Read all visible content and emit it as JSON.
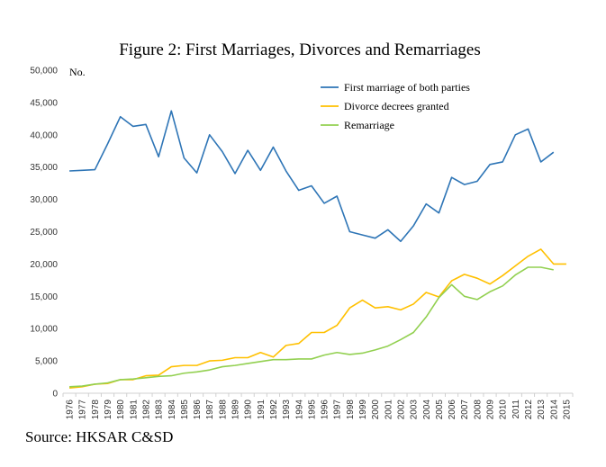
{
  "chart_data": {
    "type": "line",
    "title": "Figure 2: First Marriages, Divorces and Remarriages",
    "ylabel": "No.",
    "source": "Source: HKSAR C&SD",
    "ylim": [
      0,
      50000
    ],
    "yticks": [
      "0",
      "5,000",
      "10,000",
      "15,000",
      "20,000",
      "25,000",
      "30,000",
      "35,000",
      "40,000",
      "45,000",
      "50,000"
    ],
    "ytick_values": [
      0,
      5000,
      10000,
      15000,
      20000,
      25000,
      30000,
      35000,
      40000,
      45000,
      50000
    ],
    "x": [
      "1976",
      "1977",
      "1978",
      "1979",
      "1980",
      "1981",
      "1982",
      "1983",
      "1984",
      "1985",
      "1986",
      "1987",
      "1988",
      "1989",
      "1990",
      "1991",
      "1992",
      "1993",
      "1994",
      "1995",
      "1996",
      "1997",
      "1998",
      "1999",
      "2000",
      "2001",
      "2002",
      "2003",
      "2004",
      "2005",
      "2006",
      "2007",
      "2008",
      "2009",
      "2010",
      "2011",
      "2012",
      "2013",
      "2014",
      "2015"
    ],
    "legend_position": "top-right",
    "grid": false,
    "series": [
      {
        "name": "First marriage  of both parties",
        "color": "#2e75b6",
        "values": [
          34400,
          34500,
          34600,
          38600,
          42800,
          41300,
          41600,
          36600,
          43700,
          36400,
          34100,
          40000,
          37400,
          34000,
          37600,
          34500,
          38100,
          34400,
          31400,
          32100,
          29400,
          30500,
          25000,
          24500,
          24000,
          25300,
          23500,
          25900,
          29300,
          27900,
          33400,
          32300,
          32800,
          35400,
          35800,
          40000,
          40900,
          35800,
          37300,
          null
        ]
      },
      {
        "name": "Divorce decrees granted",
        "color": "#ffc000",
        "values": [
          800,
          1000,
          1400,
          1500,
          2100,
          2100,
          2700,
          2800,
          4100,
          4300,
          4300,
          5000,
          5100,
          5500,
          5500,
          6300,
          5600,
          7400,
          7700,
          9400,
          9400,
          10500,
          13200,
          14400,
          13200,
          13400,
          12900,
          13800,
          15600,
          14900,
          17400,
          18400,
          17800,
          16900,
          18200,
          19700,
          21200,
          22300,
          20000,
          20000
        ]
      },
      {
        "name": "Remarriage",
        "color": "#92d050",
        "values": [
          1000,
          1100,
          1400,
          1600,
          2100,
          2200,
          2400,
          2600,
          2700,
          3100,
          3300,
          3600,
          4100,
          4300,
          4600,
          4900,
          5200,
          5200,
          5300,
          5300,
          5900,
          6300,
          6000,
          6200,
          6700,
          7300,
          8300,
          9400,
          11800,
          14800,
          16800,
          15000,
          14500,
          15700,
          16600,
          18300,
          19500,
          19500,
          19100,
          null
        ]
      }
    ]
  }
}
